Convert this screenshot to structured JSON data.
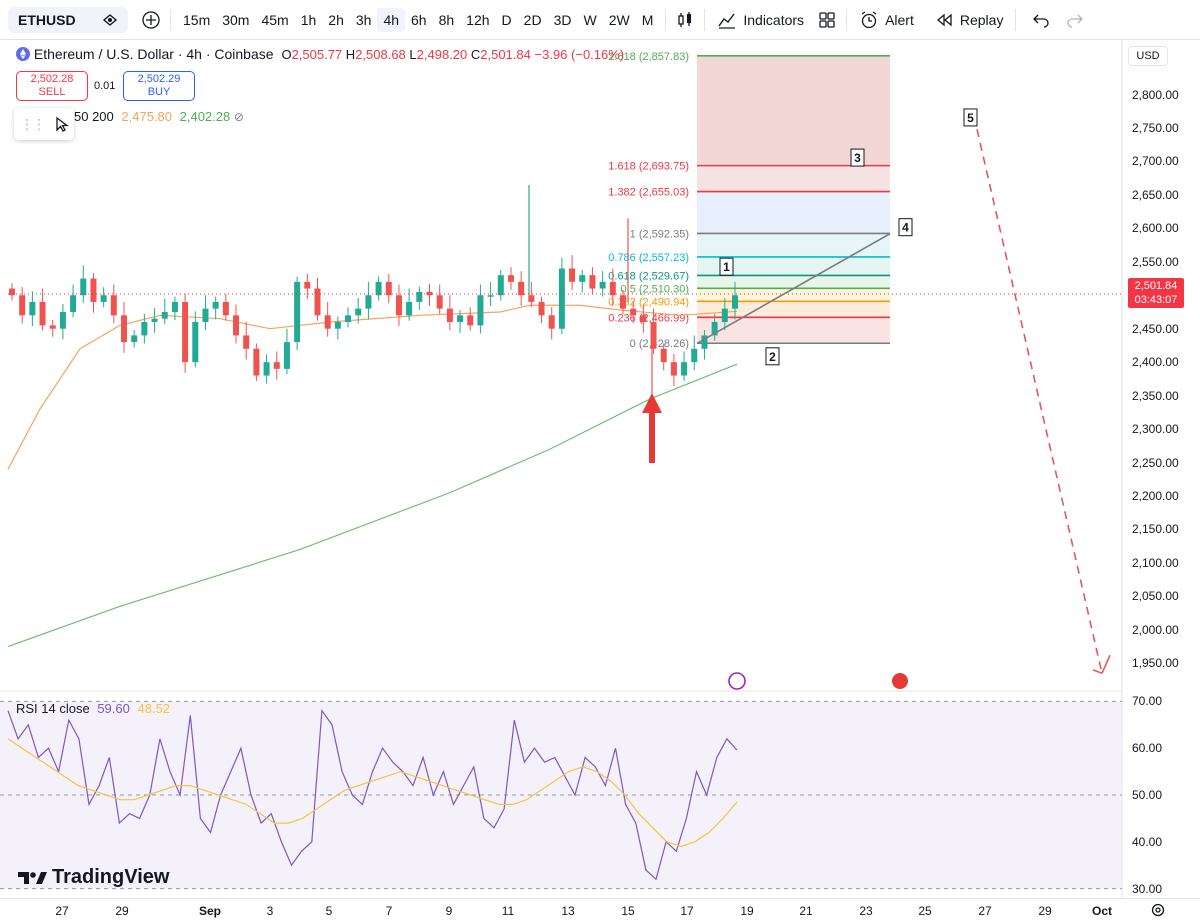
{
  "toolbar": {
    "symbol": "ETHUSD",
    "intervals": [
      "15m",
      "30m",
      "45m",
      "1h",
      "2h",
      "3h",
      "4h",
      "6h",
      "8h",
      "12h",
      "D",
      "2D",
      "3D",
      "W",
      "2W",
      "M"
    ],
    "active_interval": "4h",
    "indicators_label": "Indicators",
    "alert_label": "Alert",
    "replay_label": "Replay"
  },
  "legend": {
    "title": "Ethereum / U.S. Dollar · 4h · Coinbase",
    "o_label": "O",
    "o": "2,505.77",
    "h_label": "H",
    "h": "2,508.68",
    "l_label": "L",
    "l": "2,498.20",
    "c_label": "C",
    "c": "2,501.84",
    "change": "−3.96 (−0.16%)"
  },
  "trade": {
    "sell_price": "2,502.28",
    "sell_label": "SELL",
    "buy_price": "2,502.29",
    "buy_label": "BUY",
    "spread": "0.01"
  },
  "ma_legend": {
    "periods": "50 200",
    "v50": "2,475.80",
    "v200": "2,402.28"
  },
  "rsi_legend": {
    "label": "RSI 14 close",
    "value": "59.60",
    "ma": "48.52"
  },
  "brand": "TradingView",
  "price_axis": {
    "currency": "USD",
    "labels": [
      "2,800.00",
      "2,750.00",
      "2,700.00",
      "2,650.00",
      "2,600.00",
      "2,550.00",
      "2,450.00",
      "2,400.00",
      "2,350.00",
      "2,300.00",
      "2,250.00",
      "2,200.00",
      "2,150.00",
      "2,100.00",
      "2,050.00",
      "2,000.00",
      "1,950.00"
    ],
    "current_price": "2,501.84",
    "countdown": "03:43:07"
  },
  "rsi_axis": {
    "labels": [
      "70.00",
      "60.00",
      "50.00",
      "40.00",
      "30.00"
    ]
  },
  "date_axis": {
    "labels": [
      "27",
      "29",
      "Sep",
      "3",
      "5",
      "7",
      "9",
      "11",
      "13",
      "15",
      "17",
      "19",
      "21",
      "23",
      "25",
      "27",
      "29",
      "Oct"
    ]
  },
  "colors": {
    "up": "#22ab94",
    "down": "#ef5350",
    "ma50": "#f7a35c",
    "ma200": "#6fbf73",
    "rsi": "#7e57c2",
    "rsi_ma": "#f5c542",
    "accent": "#2962ff",
    "arrow": "#e53935"
  },
  "chart_data": {
    "type": "candlestick",
    "title": "Ethereum / U.S. Dollar · 4h · Coinbase",
    "ylim": [
      1910,
      2880
    ],
    "y_ticks": [
      1950,
      2000,
      2050,
      2100,
      2150,
      2200,
      2250,
      2300,
      2350,
      2400,
      2450,
      2500,
      2550,
      2600,
      2650,
      2700,
      2750,
      2800
    ],
    "x_ticks": [
      "27",
      "29",
      "Sep",
      "3",
      "5",
      "7",
      "9",
      "11",
      "13",
      "15",
      "17",
      "19",
      "21",
      "23",
      "25",
      "27",
      "29",
      "Oct"
    ],
    "price_close_path": [
      2500,
      2470,
      2490,
      2455,
      2450,
      2475,
      2500,
      2525,
      2490,
      2500,
      2470,
      2430,
      2440,
      2460,
      2465,
      2475,
      2490,
      2400,
      2460,
      2480,
      2490,
      2470,
      2440,
      2420,
      2380,
      2400,
      2390,
      2430,
      2520,
      2510,
      2470,
      2450,
      2460,
      2470,
      2480,
      2500,
      2520,
      2500,
      2470,
      2490,
      2505,
      2500,
      2480,
      2460,
      2470,
      2455,
      2500,
      2500,
      2530,
      2520,
      2500,
      2490,
      2470,
      2450,
      2540,
      2520,
      2530,
      2510,
      2520,
      2500,
      2480,
      2470,
      2460,
      2420,
      2400,
      2380,
      2400,
      2420,
      2440,
      2460,
      2480,
      2500
    ],
    "ma50_end": 2475.8,
    "ma200_end": 2402.28,
    "fibonacci": [
      {
        "level": "0",
        "price": 2428.26
      },
      {
        "level": "0.236",
        "price": 2466.99
      },
      {
        "level": "0.382",
        "price": 2490.94
      },
      {
        "level": "0.5",
        "price": 2510.3
      },
      {
        "level": "0.618",
        "price": 2529.67
      },
      {
        "level": "0.786",
        "price": 2557.23
      },
      {
        "level": "1",
        "price": 2592.35
      },
      {
        "level": "1.382",
        "price": 2655.03
      },
      {
        "level": "1.618",
        "price": 2693.75
      },
      {
        "level": "2.618",
        "price": 2857.83
      }
    ],
    "fib_labels": [
      "0 (2,428.26)",
      "0.236 (2,466.99)",
      "0.382 (2,490.94)",
      "0.5 (2,510.30)",
      "0.618 (2,529.67)",
      "0.786 (2,557.23)",
      "1 (2,592.35)",
      "1.382 (2,655.03)",
      "1.618 (2,693.75)",
      "2.618 (2,857.83)"
    ],
    "wave_labels": [
      "1",
      "2",
      "3",
      "4",
      "5"
    ],
    "rsi": {
      "ylim": [
        28,
        72
      ],
      "bands": [
        30,
        50,
        70
      ],
      "values": [
        68,
        62,
        65,
        58,
        60,
        55,
        66,
        62,
        48,
        52,
        58,
        44,
        46,
        45,
        50,
        62,
        55,
        50,
        67,
        45,
        42,
        50,
        55,
        60,
        50,
        44,
        46,
        40,
        35,
        38,
        40,
        68,
        65,
        55,
        50,
        48,
        55,
        60,
        57,
        55,
        52,
        58,
        50,
        55,
        48,
        52,
        56,
        45,
        43,
        47,
        66,
        57,
        60,
        57,
        58,
        54,
        50,
        58,
        56,
        52,
        60,
        48,
        44,
        34,
        32,
        40,
        38,
        45,
        55,
        50,
        58,
        62,
        59.6
      ],
      "ma_values": [
        62,
        60,
        58,
        56,
        54,
        52,
        51,
        50,
        49,
        49,
        50,
        51,
        52,
        52,
        51,
        50,
        49,
        48,
        46,
        44,
        44,
        45,
        47,
        49,
        51,
        52,
        53,
        54,
        55,
        54,
        53,
        52,
        51,
        50,
        49,
        48,
        48,
        49,
        51,
        53,
        55,
        56,
        55,
        53,
        50,
        46,
        43,
        40,
        39,
        40,
        42,
        45,
        48.52
      ]
    }
  }
}
